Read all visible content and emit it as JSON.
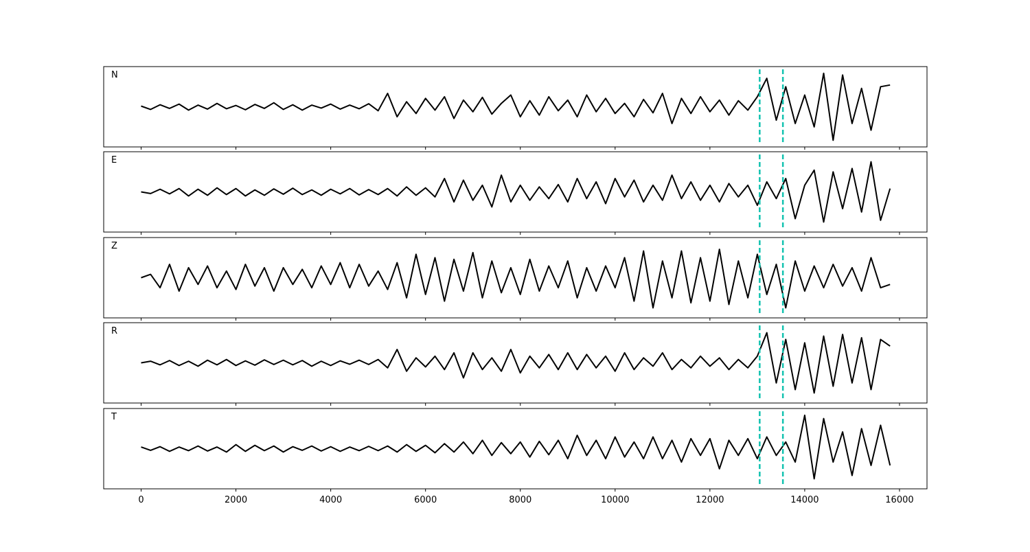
{
  "chart_data": {
    "type": "line",
    "layout": "stacked",
    "x": [
      0,
      200,
      400,
      600,
      800,
      1000,
      1200,
      1400,
      1600,
      1800,
      2000,
      2200,
      2400,
      2600,
      2800,
      3000,
      3200,
      3400,
      3600,
      3800,
      4000,
      4200,
      4400,
      4600,
      4800,
      5000,
      5200,
      5400,
      5600,
      5800,
      6000,
      6200,
      6400,
      6600,
      6800,
      7000,
      7200,
      7400,
      7600,
      7800,
      8000,
      8200,
      8400,
      8600,
      8800,
      9000,
      9200,
      9400,
      9600,
      9800,
      10000,
      10200,
      10400,
      10600,
      10800,
      11000,
      11200,
      11400,
      11600,
      11800,
      12000,
      12200,
      12400,
      12600,
      12800,
      13000,
      13200,
      13400,
      13600,
      13800,
      14000,
      14200,
      14400,
      14600,
      14800,
      15000,
      15200,
      15400,
      15600,
      15800
    ],
    "xlim": [
      -790,
      16580
    ],
    "xticks": [
      0,
      2000,
      4000,
      6000,
      8000,
      10000,
      12000,
      14000,
      16000
    ],
    "ylim": [
      -1.2,
      1.2
    ],
    "series": [
      {
        "name": "N",
        "color": "#000000",
        "values": [
          0.02,
          -0.08,
          0.06,
          -0.05,
          0.08,
          -0.1,
          0.05,
          -0.07,
          0.1,
          -0.06,
          0.04,
          -0.09,
          0.07,
          -0.05,
          0.12,
          -0.08,
          0.06,
          -0.1,
          0.05,
          -0.04,
          0.08,
          -0.07,
          0.05,
          -0.06,
          0.09,
          -0.12,
          0.4,
          -0.3,
          0.15,
          -0.2,
          0.25,
          -0.1,
          0.3,
          -0.35,
          0.2,
          -0.15,
          0.28,
          -0.22,
          0.1,
          0.35,
          -0.3,
          0.18,
          -0.25,
          0.3,
          -0.12,
          0.2,
          -0.3,
          0.35,
          -0.15,
          0.25,
          -0.2,
          0.1,
          -0.3,
          0.22,
          -0.18,
          0.4,
          -0.5,
          0.25,
          -0.2,
          0.3,
          -0.15,
          0.2,
          -0.25,
          0.18,
          -0.1,
          0.3,
          0.85,
          -0.4,
          0.6,
          -0.5,
          0.35,
          -0.6,
          1.0,
          -1.0,
          0.95,
          -0.5,
          0.55,
          -0.7,
          0.6,
          0.65
        ]
      },
      {
        "name": "E",
        "color": "#000000",
        "values": [
          0.0,
          -0.05,
          0.08,
          -0.06,
          0.1,
          -0.12,
          0.08,
          -0.1,
          0.12,
          -0.08,
          0.1,
          -0.12,
          0.06,
          -0.1,
          0.09,
          -0.07,
          0.11,
          -0.08,
          0.06,
          -0.1,
          0.08,
          -0.06,
          0.1,
          -0.09,
          0.07,
          -0.08,
          0.1,
          -0.12,
          0.15,
          -0.1,
          0.12,
          -0.15,
          0.4,
          -0.3,
          0.35,
          -0.25,
          0.2,
          -0.45,
          0.5,
          -0.3,
          0.2,
          -0.25,
          0.15,
          -0.2,
          0.22,
          -0.3,
          0.4,
          -0.2,
          0.3,
          -0.35,
          0.4,
          -0.15,
          0.35,
          -0.3,
          0.2,
          -0.25,
          0.5,
          -0.2,
          0.3,
          -0.25,
          0.2,
          -0.3,
          0.25,
          -0.15,
          0.2,
          -0.4,
          0.3,
          -0.2,
          0.4,
          -0.8,
          0.2,
          0.65,
          -0.9,
          0.6,
          -0.5,
          0.7,
          -0.6,
          0.9,
          -0.85,
          0.1
        ]
      },
      {
        "name": "Z",
        "color": "#000000",
        "values": [
          0.0,
          0.1,
          -0.3,
          0.4,
          -0.4,
          0.3,
          -0.2,
          0.35,
          -0.3,
          0.2,
          -0.35,
          0.4,
          -0.25,
          0.3,
          -0.4,
          0.3,
          -0.2,
          0.25,
          -0.3,
          0.35,
          -0.2,
          0.45,
          -0.3,
          0.4,
          -0.25,
          0.2,
          -0.35,
          0.45,
          -0.6,
          0.7,
          -0.5,
          0.6,
          -0.7,
          0.55,
          -0.4,
          0.75,
          -0.6,
          0.5,
          -0.45,
          0.3,
          -0.5,
          0.55,
          -0.4,
          0.35,
          -0.3,
          0.5,
          -0.6,
          0.3,
          -0.4,
          0.35,
          -0.3,
          0.6,
          -0.7,
          0.8,
          -0.9,
          0.5,
          -0.6,
          0.8,
          -0.75,
          0.6,
          -0.7,
          0.85,
          -0.8,
          0.5,
          -0.6,
          0.7,
          -0.5,
          0.4,
          -0.9,
          0.5,
          -0.4,
          0.35,
          -0.3,
          0.4,
          -0.25,
          0.3,
          -0.4,
          0.6,
          -0.3,
          -0.2
        ]
      },
      {
        "name": "R",
        "color": "#000000",
        "values": [
          0.0,
          0.05,
          -0.06,
          0.07,
          -0.08,
          0.05,
          -0.1,
          0.08,
          -0.06,
          0.1,
          -0.08,
          0.06,
          -0.07,
          0.09,
          -0.05,
          0.08,
          -0.06,
          0.07,
          -0.1,
          0.05,
          -0.08,
          0.06,
          -0.04,
          0.08,
          -0.05,
          0.1,
          -0.15,
          0.4,
          -0.25,
          0.15,
          -0.12,
          0.2,
          -0.2,
          0.3,
          -0.45,
          0.3,
          -0.2,
          0.15,
          -0.25,
          0.4,
          -0.3,
          0.2,
          -0.15,
          0.25,
          -0.2,
          0.3,
          -0.2,
          0.25,
          -0.15,
          0.2,
          -0.25,
          0.3,
          -0.2,
          0.15,
          -0.1,
          0.3,
          -0.2,
          0.1,
          -0.15,
          0.2,
          -0.1,
          0.15,
          -0.2,
          0.1,
          -0.15,
          0.2,
          0.9,
          -0.6,
          0.7,
          -0.8,
          0.6,
          -0.9,
          0.8,
          -0.7,
          0.85,
          -0.6,
          0.75,
          -0.8,
          0.7,
          0.5
        ]
      },
      {
        "name": "T",
        "color": "#000000",
        "values": [
          0.05,
          -0.05,
          0.06,
          -0.08,
          0.05,
          -0.06,
          0.08,
          -0.07,
          0.05,
          -0.1,
          0.12,
          -0.08,
          0.1,
          -0.06,
          0.08,
          -0.1,
          0.06,
          -0.05,
          0.08,
          -0.07,
          0.06,
          -0.08,
          0.05,
          -0.06,
          0.07,
          -0.06,
          0.08,
          -0.1,
          0.12,
          -0.08,
          0.1,
          -0.12,
          0.15,
          -0.1,
          0.2,
          -0.15,
          0.25,
          -0.2,
          0.18,
          -0.15,
          0.2,
          -0.25,
          0.22,
          -0.18,
          0.25,
          -0.3,
          0.4,
          -0.2,
          0.25,
          -0.3,
          0.35,
          -0.25,
          0.2,
          -0.3,
          0.35,
          -0.3,
          0.25,
          -0.4,
          0.3,
          -0.2,
          0.3,
          -0.6,
          0.25,
          -0.2,
          0.3,
          -0.3,
          0.35,
          -0.2,
          0.2,
          -0.4,
          1.0,
          -0.9,
          0.9,
          -0.4,
          0.5,
          -0.8,
          0.6,
          -0.5,
          0.7,
          -0.5
        ]
      }
    ],
    "markers": [
      13050,
      13540
    ],
    "marker_color": "#12c2b0"
  }
}
